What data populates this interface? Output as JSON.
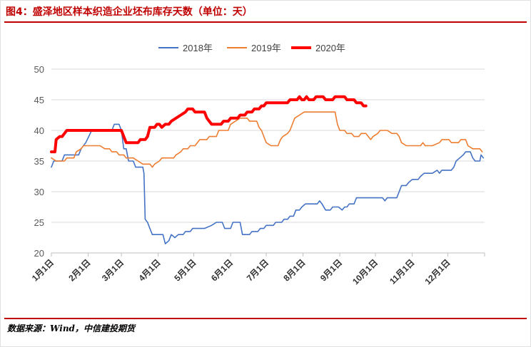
{
  "title": "图4：盛泽地区样本织造企业坯布库存天数（单位：天）",
  "source": "数据来源：Wind，中信建投期货",
  "colors": {
    "accent": "#c00000",
    "s2018": "#4472c4",
    "s2019": "#ed7d31",
    "s2020": "#ff0000"
  },
  "chart_data": {
    "type": "line",
    "title": "",
    "xlabel": "",
    "ylabel": "",
    "ylim": [
      20,
      50
    ],
    "yticks": [
      20,
      25,
      30,
      35,
      40,
      45,
      50
    ],
    "xlim": [
      1,
      366
    ],
    "x_unit": "day of year",
    "x_ticks": [
      {
        "label": "1月1日",
        "day": 1
      },
      {
        "label": "2月1日",
        "day": 32
      },
      {
        "label": "3月1日",
        "day": 60
      },
      {
        "label": "4月1日",
        "day": 91
      },
      {
        "label": "5月1日",
        "day": 121
      },
      {
        "label": "6月1日",
        "day": 152
      },
      {
        "label": "7月1日",
        "day": 182
      },
      {
        "label": "8月1日",
        "day": 213
      },
      {
        "label": "9月1日",
        "day": 244
      },
      {
        "label": "10月1日",
        "day": 274
      },
      {
        "label": "11月1日",
        "day": 305
      },
      {
        "label": "12月1日",
        "day": 335
      }
    ],
    "grid": true,
    "legend": "top",
    "series": [
      {
        "name": "2018年",
        "color": "#4472c4",
        "width": 1.6,
        "points": [
          [
            1,
            34
          ],
          [
            3,
            35
          ],
          [
            10,
            35
          ],
          [
            12,
            36
          ],
          [
            20,
            36
          ],
          [
            24,
            36
          ],
          [
            26,
            37
          ],
          [
            30,
            38
          ],
          [
            35,
            40
          ],
          [
            40,
            40
          ],
          [
            45,
            40
          ],
          [
            50,
            40
          ],
          [
            52,
            40
          ],
          [
            54,
            41
          ],
          [
            58,
            41
          ],
          [
            60,
            40
          ],
          [
            62,
            37
          ],
          [
            64,
            37
          ],
          [
            66,
            35
          ],
          [
            70,
            35
          ],
          [
            72,
            34
          ],
          [
            78,
            34
          ],
          [
            79,
            33
          ],
          [
            80,
            25.5
          ],
          [
            82,
            25
          ],
          [
            84,
            24
          ],
          [
            86,
            23
          ],
          [
            90,
            23
          ],
          [
            95,
            23
          ],
          [
            97,
            21.5
          ],
          [
            100,
            22
          ],
          [
            102,
            23
          ],
          [
            105,
            22.5
          ],
          [
            108,
            23
          ],
          [
            112,
            23
          ],
          [
            114,
            23.5
          ],
          [
            118,
            23.5
          ],
          [
            120,
            24
          ],
          [
            130,
            24
          ],
          [
            136,
            24.5
          ],
          [
            140,
            25
          ],
          [
            145,
            25
          ],
          [
            147,
            24
          ],
          [
            152,
            24
          ],
          [
            154,
            25
          ],
          [
            160,
            25
          ],
          [
            162,
            23
          ],
          [
            168,
            23
          ],
          [
            170,
            23.5
          ],
          [
            175,
            23.5
          ],
          [
            177,
            24
          ],
          [
            180,
            24
          ],
          [
            182,
            24.5
          ],
          [
            188,
            24.5
          ],
          [
            190,
            25
          ],
          [
            195,
            25
          ],
          [
            197,
            25.5
          ],
          [
            200,
            25.5
          ],
          [
            202,
            26
          ],
          [
            205,
            26
          ],
          [
            207,
            27
          ],
          [
            210,
            27
          ],
          [
            212,
            27.5
          ],
          [
            215,
            28
          ],
          [
            225,
            28
          ],
          [
            227,
            28.5
          ],
          [
            229,
            28
          ],
          [
            232,
            27
          ],
          [
            236,
            27
          ],
          [
            238,
            27.5
          ],
          [
            243,
            27.5
          ],
          [
            246,
            27
          ],
          [
            248,
            27.5
          ],
          [
            250,
            27.5
          ],
          [
            252,
            28
          ],
          [
            256,
            28
          ],
          [
            258,
            29
          ],
          [
            270,
            29
          ],
          [
            280,
            29
          ],
          [
            282,
            28.5
          ],
          [
            284,
            29
          ],
          [
            292,
            29
          ],
          [
            294,
            30
          ],
          [
            296,
            31
          ],
          [
            300,
            31
          ],
          [
            302,
            31.5
          ],
          [
            305,
            32
          ],
          [
            310,
            32
          ],
          [
            312,
            32.5
          ],
          [
            315,
            33
          ],
          [
            322,
            33
          ],
          [
            326,
            33.5
          ],
          [
            328,
            33
          ],
          [
            330,
            33.5
          ],
          [
            338,
            33.5
          ],
          [
            340,
            34
          ],
          [
            342,
            35
          ],
          [
            345,
            35.5
          ],
          [
            348,
            36
          ],
          [
            350,
            36.5
          ],
          [
            354,
            36.5
          ],
          [
            356,
            35.5
          ],
          [
            358,
            35
          ],
          [
            362,
            35
          ],
          [
            363,
            36
          ],
          [
            365,
            35.5
          ]
        ]
      },
      {
        "name": "2019年",
        "color": "#ed7d31",
        "width": 1.6,
        "points": [
          [
            1,
            35.5
          ],
          [
            5,
            35
          ],
          [
            12,
            35
          ],
          [
            14,
            35.5
          ],
          [
            20,
            35.5
          ],
          [
            22,
            36.5
          ],
          [
            26,
            37
          ],
          [
            28,
            37.5
          ],
          [
            42,
            37.5
          ],
          [
            46,
            37
          ],
          [
            50,
            37
          ],
          [
            52,
            36.5
          ],
          [
            56,
            36.5
          ],
          [
            58,
            36
          ],
          [
            62,
            36
          ],
          [
            64,
            35.5
          ],
          [
            68,
            35.5
          ],
          [
            70,
            35.5
          ],
          [
            74,
            35
          ],
          [
            78,
            34.5
          ],
          [
            84,
            34.5
          ],
          [
            86,
            34
          ],
          [
            88,
            34.5
          ],
          [
            92,
            35
          ],
          [
            94,
            35.5
          ],
          [
            104,
            35.5
          ],
          [
            106,
            36
          ],
          [
            110,
            36.5
          ],
          [
            112,
            37
          ],
          [
            116,
            37
          ],
          [
            118,
            37.5
          ],
          [
            122,
            37.5
          ],
          [
            124,
            38
          ],
          [
            126,
            38.5
          ],
          [
            132,
            38.5
          ],
          [
            134,
            39
          ],
          [
            140,
            39
          ],
          [
            142,
            40
          ],
          [
            150,
            40
          ],
          [
            152,
            41
          ],
          [
            156,
            41.5
          ],
          [
            160,
            42
          ],
          [
            166,
            42
          ],
          [
            168,
            41.5
          ],
          [
            174,
            41.5
          ],
          [
            176,
            40.5
          ],
          [
            178,
            40
          ],
          [
            180,
            39
          ],
          [
            182,
            38
          ],
          [
            186,
            37.5
          ],
          [
            192,
            37.5
          ],
          [
            194,
            38.5
          ],
          [
            196,
            39
          ],
          [
            200,
            39.5
          ],
          [
            202,
            40
          ],
          [
            204,
            41
          ],
          [
            206,
            42
          ],
          [
            210,
            42.5
          ],
          [
            214,
            43
          ],
          [
            236,
            43
          ],
          [
            240,
            43
          ],
          [
            242,
            41
          ],
          [
            244,
            40
          ],
          [
            248,
            40
          ],
          [
            250,
            39.5
          ],
          [
            254,
            39.5
          ],
          [
            256,
            39
          ],
          [
            260,
            39
          ],
          [
            262,
            39.5
          ],
          [
            266,
            39.5
          ],
          [
            268,
            39
          ],
          [
            270,
            38.5
          ],
          [
            272,
            39
          ],
          [
            276,
            39.5
          ],
          [
            278,
            40
          ],
          [
            284,
            40
          ],
          [
            288,
            39.5
          ],
          [
            292,
            39.5
          ],
          [
            294,
            39
          ],
          [
            296,
            38
          ],
          [
            300,
            37.5
          ],
          [
            312,
            37.5
          ],
          [
            314,
            38
          ],
          [
            316,
            37.5
          ],
          [
            322,
            37.5
          ],
          [
            328,
            38
          ],
          [
            330,
            38.5
          ],
          [
            336,
            38.5
          ],
          [
            338,
            38
          ],
          [
            344,
            38
          ],
          [
            346,
            38.5
          ],
          [
            350,
            38.5
          ],
          [
            352,
            37.5
          ],
          [
            356,
            37
          ],
          [
            360,
            37
          ],
          [
            362,
            37
          ],
          [
            364,
            36.5
          ]
        ]
      },
      {
        "name": "2020年",
        "color": "#ff0000",
        "width": 4,
        "points": [
          [
            1,
            36.5
          ],
          [
            4,
            36.5
          ],
          [
            5,
            38.5
          ],
          [
            8,
            39
          ],
          [
            10,
            39
          ],
          [
            12,
            39.5
          ],
          [
            14,
            40
          ],
          [
            18,
            40
          ],
          [
            20,
            40
          ],
          [
            60,
            40
          ],
          [
            62,
            39
          ],
          [
            64,
            38
          ],
          [
            68,
            38
          ],
          [
            70,
            38
          ],
          [
            74,
            38
          ],
          [
            76,
            38.5
          ],
          [
            80,
            38.5
          ],
          [
            82,
            39
          ],
          [
            84,
            40.5
          ],
          [
            88,
            40.5
          ],
          [
            90,
            41
          ],
          [
            92,
            41
          ],
          [
            94,
            40.5
          ],
          [
            97,
            41
          ],
          [
            100,
            41
          ],
          [
            102,
            41.5
          ],
          [
            106,
            42
          ],
          [
            110,
            42.5
          ],
          [
            114,
            43
          ],
          [
            116,
            43.5
          ],
          [
            120,
            43.5
          ],
          [
            122,
            43
          ],
          [
            126,
            43
          ],
          [
            130,
            43
          ],
          [
            132,
            42
          ],
          [
            134,
            41.5
          ],
          [
            136,
            41
          ],
          [
            142,
            41
          ],
          [
            144,
            41
          ],
          [
            146,
            41.5
          ],
          [
            150,
            41.5
          ],
          [
            152,
            42
          ],
          [
            158,
            42
          ],
          [
            160,
            42.5
          ],
          [
            164,
            42.5
          ],
          [
            166,
            43
          ],
          [
            170,
            43
          ],
          [
            172,
            43.5
          ],
          [
            176,
            43.5
          ],
          [
            178,
            44
          ],
          [
            180,
            44
          ],
          [
            182,
            44.5
          ],
          [
            184,
            44.5
          ],
          [
            200,
            44.5
          ],
          [
            202,
            45
          ],
          [
            208,
            45
          ],
          [
            210,
            45.5
          ],
          [
            212,
            45
          ],
          [
            214,
            45
          ],
          [
            216,
            45.5
          ],
          [
            218,
            45
          ],
          [
            222,
            45
          ],
          [
            224,
            45.5
          ],
          [
            230,
            45.5
          ],
          [
            232,
            45
          ],
          [
            238,
            45
          ],
          [
            240,
            45.5
          ],
          [
            248,
            45.5
          ],
          [
            250,
            45
          ],
          [
            256,
            45
          ],
          [
            258,
            44.5
          ],
          [
            262,
            44.5
          ],
          [
            264,
            44
          ],
          [
            266,
            44
          ]
        ]
      }
    ]
  },
  "legend": [
    {
      "label": "2018年",
      "color": "#4472c4"
    },
    {
      "label": "2019年",
      "color": "#ed7d31"
    },
    {
      "label": "2020年",
      "color": "#ff0000"
    }
  ]
}
